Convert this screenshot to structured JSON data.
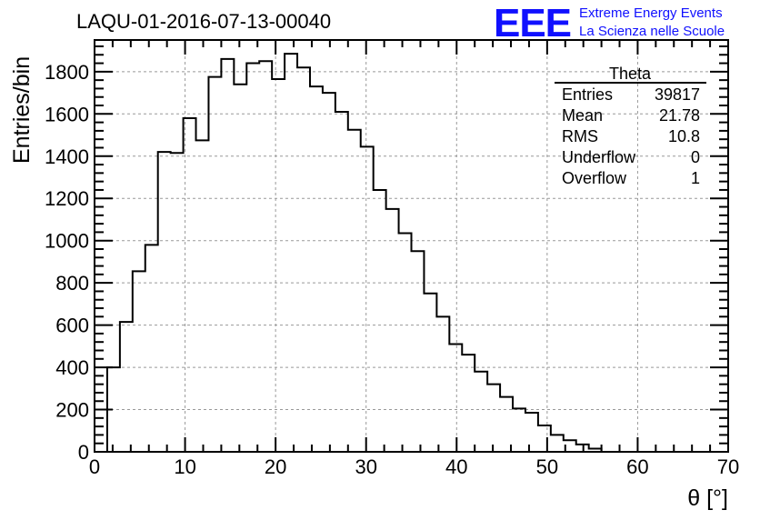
{
  "logo": {
    "mark": "EEE",
    "line1": "Extreme Energy Events",
    "line2": "La Scienza nelle Scuole",
    "color": "#1010ff"
  },
  "stats": {
    "title": "Theta",
    "rows": [
      {
        "label": "Entries",
        "value": "39817"
      },
      {
        "label": "Mean",
        "value": "21.78"
      },
      {
        "label": "RMS",
        "value": "10.8"
      },
      {
        "label": "Underflow",
        "value": "0"
      },
      {
        "label": "Overflow",
        "value": "1"
      }
    ]
  },
  "chart_data": {
    "type": "bar",
    "style": "step-histogram",
    "title": "LAQU-01-2016-07-13-00040",
    "xlabel": "θ [°]",
    "ylabel": "Entries/bin",
    "xlim": [
      0,
      70
    ],
    "ylim": [
      0,
      1950
    ],
    "bin_width": 1.4,
    "bin_start": 0,
    "values": [
      0,
      400,
      615,
      855,
      980,
      1420,
      1415,
      1580,
      1475,
      1775,
      1860,
      1740,
      1840,
      1850,
      1765,
      1885,
      1820,
      1730,
      1700,
      1610,
      1525,
      1445,
      1240,
      1150,
      1035,
      950,
      750,
      640,
      510,
      460,
      380,
      320,
      260,
      205,
      185,
      125,
      80,
      55,
      35,
      15,
      0,
      0,
      0,
      0,
      0,
      0,
      0,
      0,
      0,
      0
    ],
    "xticks": [
      "0",
      "10",
      "20",
      "30",
      "40",
      "50",
      "60",
      "70"
    ],
    "yticks": [
      "0",
      "200",
      "400",
      "600",
      "800",
      "1000",
      "1200",
      "1400",
      "1600",
      "1800"
    ],
    "grid": true,
    "legend": "top-right"
  }
}
